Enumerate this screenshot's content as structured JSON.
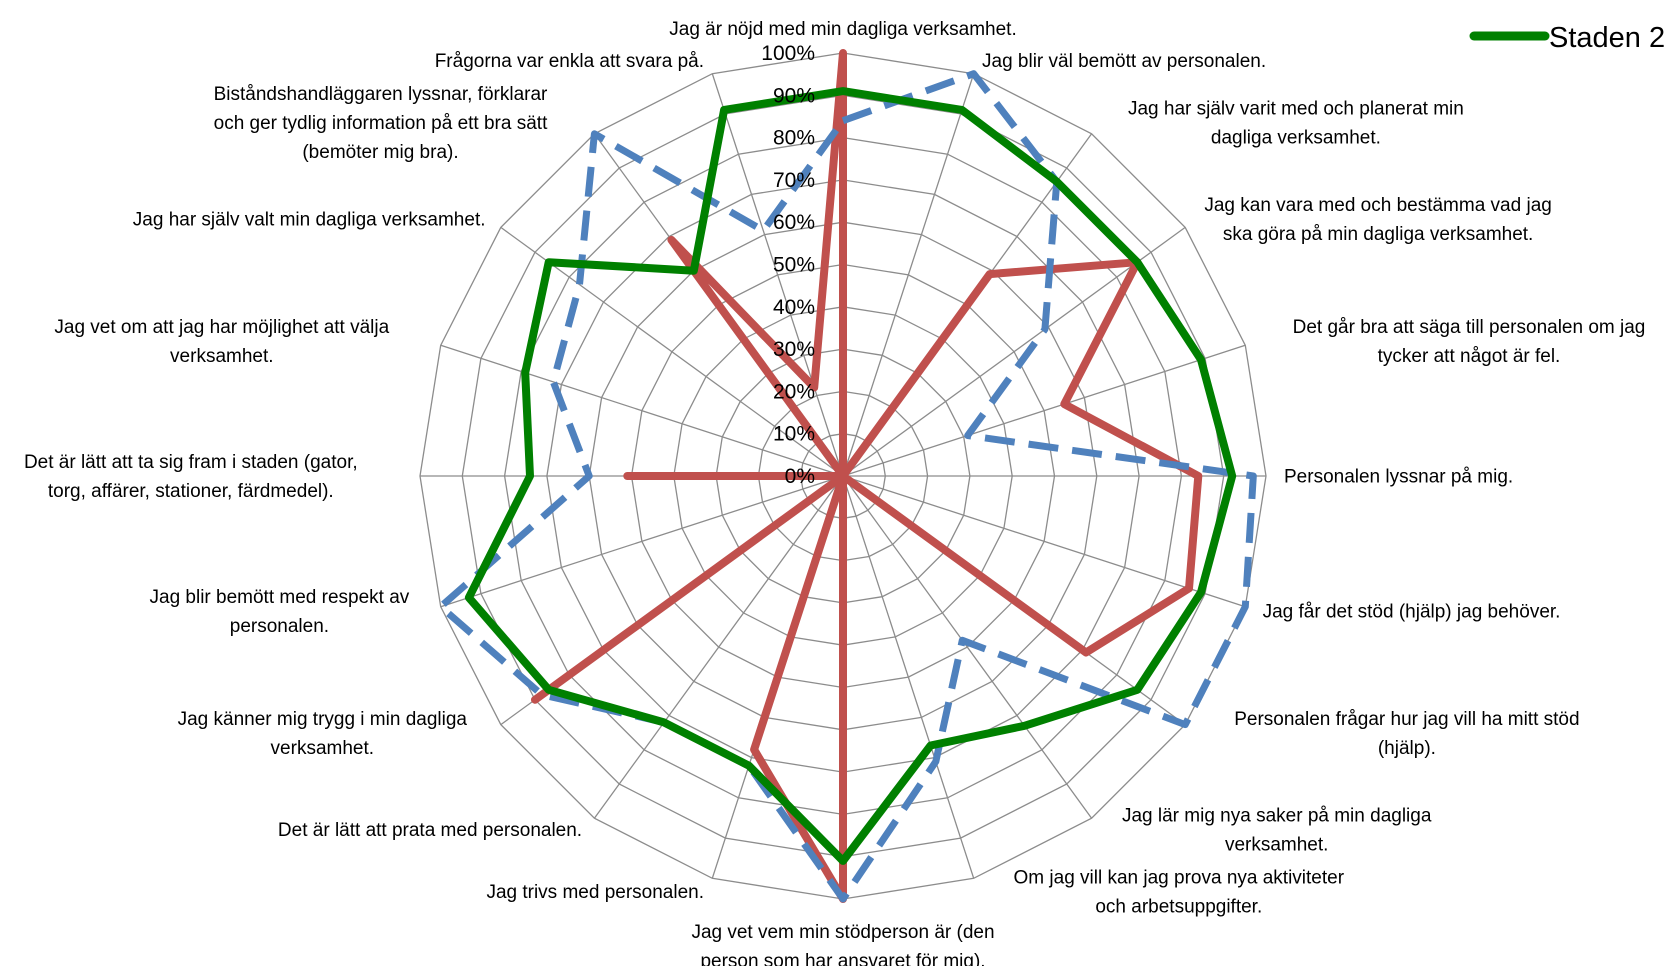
{
  "chart_data": {
    "type": "radar",
    "title": "",
    "axes": [
      "Jag är nöjd med min dagliga verksamhet.",
      "Jag blir väl bemött av personalen.",
      "Jag har själv varit med och planerat min dagliga verksamhet.",
      "Jag kan vara med och bestämma vad jag ska göra på min dagliga verksamhet.",
      "Det går bra att säga till personalen om jag tycker att något är fel.",
      "Personalen lyssnar på mig.",
      "Jag får det stöd (hjälp) jag behöver.",
      "Personalen frågar hur jag vill ha mitt stöd (hjälp).",
      "Jag lär mig nya saker på min dagliga verksamhet.",
      "Om jag vill kan jag prova nya aktiviteter och arbetsuppgifter.",
      "Jag vet vem min stödperson är (den person som har ansvaret för mig).",
      "Jag trivs med personalen.",
      "Det är lätt att prata med personalen.",
      "Jag känner mig trygg i min dagliga verksamhet.",
      "Jag blir bemött med respekt av personalen.",
      "Det är lätt att ta sig fram i staden (gator, torg, affärer, stationer, färdmedel).",
      "Jag vet om att jag har möjlighet att välja verksamhet.",
      "Jag har själv valt min dagliga verksamhet.",
      "Biståndshandläggaren lyssnar, förklarar och ger tydlig information på ett bra sätt (bemöter mig bra).",
      "Frågorna var enkla att svara på."
    ],
    "axis_label_lines": [
      [
        "Jag är nöjd med min dagliga verksamhet."
      ],
      [
        "Jag blir väl bemött av personalen."
      ],
      [
        "Jag har själv varit med och planerat min",
        "dagliga verksamhet."
      ],
      [
        "Jag kan vara med och bestämma vad jag",
        "ska göra på min dagliga verksamhet."
      ],
      [
        "Det går bra att säga till personalen om jag",
        "tycker att något är fel."
      ],
      [
        "Personalen lyssnar på mig."
      ],
      [
        "Jag får det stöd (hjälp) jag behöver."
      ],
      [
        "Personalen frågar hur jag vill ha mitt stöd",
        "(hjälp)."
      ],
      [
        "Jag lär mig nya saker på min dagliga",
        "verksamhet."
      ],
      [
        "Om jag vill kan jag prova nya aktiviteter",
        "och arbetsuppgifter."
      ],
      [
        "Jag vet vem min stödperson är (den",
        "person som har ansvaret för mig)."
      ],
      [
        "Jag trivs med personalen."
      ],
      [
        "Det är lätt att prata med personalen."
      ],
      [
        "Jag känner mig trygg i min dagliga",
        "verksamhet."
      ],
      [
        "Jag blir bemött med respekt av",
        "personalen."
      ],
      [
        "Det är lätt att ta sig fram i staden (gator,",
        "torg, affärer, stationer, färdmedel)."
      ],
      [
        "Jag vet om att jag har möjlighet att välja",
        "verksamhet."
      ],
      [
        "Jag har själv valt min dagliga verksamhet."
      ],
      [
        "Biståndshandläggaren lyssnar, förklarar",
        "och ger tydlig information på ett bra sätt",
        "(bemöter mig bra)."
      ],
      [
        "Frågorna var enkla att svara på."
      ]
    ],
    "r_ticks": [
      "0%",
      "10%",
      "20%",
      "30%",
      "40%",
      "50%",
      "60%",
      "70%",
      "80%",
      "90%",
      "100%"
    ],
    "r_range": [
      0,
      1
    ],
    "grid": true,
    "legend": {
      "position": "top-right",
      "entries": [
        "Staden 2"
      ]
    },
    "series": [
      {
        "name": "Staden 2",
        "color": "#008000",
        "style": "solid",
        "values": [
          0.91,
          0.91,
          0.86,
          0.86,
          0.89,
          0.92,
          0.89,
          0.86,
          0.73,
          0.67,
          0.91,
          0.72,
          0.72,
          0.86,
          0.93,
          0.74,
          0.79,
          0.86,
          0.6,
          0.91
        ]
      },
      {
        "name": "",
        "color": "#4F81BD",
        "style": "dashed",
        "values": [
          0.84,
          1.0,
          0.86,
          0.59,
          0.31,
          0.97,
          1.0,
          1.0,
          0.48,
          0.71,
          1.0,
          0.72,
          0.72,
          0.88,
          1.0,
          0.6,
          0.72,
          0.77,
          1.0,
          0.61
        ]
      },
      {
        "name": "",
        "color": "#C0504D",
        "style": "solid",
        "values": [
          1.0,
          0.0,
          0.59,
          0.86,
          0.55,
          0.84,
          0.86,
          0.71,
          0.0,
          0.0,
          1.0,
          0.68,
          0.0,
          0.9,
          0.0,
          0.51,
          0.0,
          0.0,
          0.69,
          0.22
        ]
      }
    ]
  }
}
